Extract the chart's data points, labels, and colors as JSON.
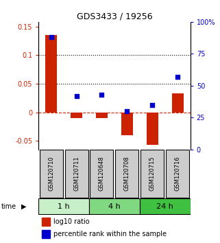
{
  "title": "GDS3433 / 19256",
  "samples": [
    "GSM120710",
    "GSM120711",
    "GSM120648",
    "GSM120708",
    "GSM120715",
    "GSM120716"
  ],
  "log10_ratio": [
    0.135,
    -0.01,
    -0.01,
    -0.04,
    -0.057,
    0.033
  ],
  "percentile_rank": [
    88,
    42,
    43,
    30,
    35,
    57
  ],
  "ylim_left": [
    -0.065,
    0.158
  ],
  "yticks_left": [
    -0.05,
    0.0,
    0.05,
    0.1,
    0.15
  ],
  "ytick_labels_left": [
    "-0.05",
    "0",
    "0.05",
    "0.1",
    "0.15"
  ],
  "ylim_right": [
    0,
    100
  ],
  "yticks_right": [
    0,
    25,
    50,
    75,
    100
  ],
  "ytick_labels_right": [
    "0",
    "25",
    "50",
    "75",
    "100%"
  ],
  "time_groups": [
    {
      "label": "1 h",
      "start": 0,
      "end": 1,
      "color": "#c8f0c8"
    },
    {
      "label": "4 h",
      "start": 2,
      "end": 3,
      "color": "#80d880"
    },
    {
      "label": "24 h",
      "start": 4,
      "end": 5,
      "color": "#40c040"
    }
  ],
  "bar_color": "#cc2200",
  "dot_color": "#0000cc",
  "sample_box_color": "#cccccc",
  "legend_bar_label": "log10 ratio",
  "legend_dot_label": "percentile rank within the sample"
}
